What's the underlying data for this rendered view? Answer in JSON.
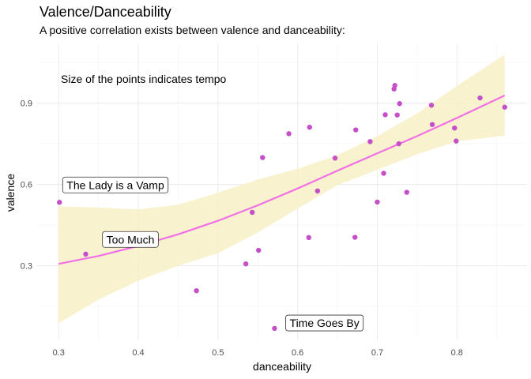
{
  "chart_data": {
    "type": "scatter",
    "title": "Valence/Danceability",
    "subtitle": "A positive correlation exists between valence and danceability:",
    "xlabel": "danceability",
    "ylabel": "valence",
    "xlim": [
      0.272,
      0.888
    ],
    "ylim": [
      0.028,
      1.12
    ],
    "x_ticks": [
      0.3,
      0.4,
      0.5,
      0.6,
      0.7,
      0.8
    ],
    "x_tick_labels": [
      "0.3",
      "0.4",
      "0.5",
      "0.6",
      "0.7",
      "0.8"
    ],
    "y_ticks": [
      0.3,
      0.6,
      0.9
    ],
    "y_tick_labels": [
      "0.3",
      "0.6",
      "0.9"
    ],
    "grid": true,
    "annotation": "Size of the points indicates tempo",
    "point_color": "#c44fc9",
    "trend_color": "#f270e6",
    "band_color": "#f7f0c7",
    "points": [
      {
        "x": 0.301,
        "y": 0.534
      },
      {
        "x": 0.334,
        "y": 0.343
      },
      {
        "x": 0.473,
        "y": 0.208
      },
      {
        "x": 0.535,
        "y": 0.307
      },
      {
        "x": 0.543,
        "y": 0.497
      },
      {
        "x": 0.551,
        "y": 0.357
      },
      {
        "x": 0.556,
        "y": 0.699
      },
      {
        "x": 0.571,
        "y": 0.069
      },
      {
        "x": 0.589,
        "y": 0.787
      },
      {
        "x": 0.614,
        "y": 0.404
      },
      {
        "x": 0.615,
        "y": 0.811
      },
      {
        "x": 0.625,
        "y": 0.576
      },
      {
        "x": 0.647,
        "y": 0.697
      },
      {
        "x": 0.672,
        "y": 0.405
      },
      {
        "x": 0.673,
        "y": 0.801
      },
      {
        "x": 0.691,
        "y": 0.758
      },
      {
        "x": 0.7,
        "y": 0.535
      },
      {
        "x": 0.708,
        "y": 0.641
      },
      {
        "x": 0.71,
        "y": 0.857
      },
      {
        "x": 0.721,
        "y": 0.952
      },
      {
        "x": 0.722,
        "y": 0.965
      },
      {
        "x": 0.725,
        "y": 0.856
      },
      {
        "x": 0.727,
        "y": 0.75
      },
      {
        "x": 0.728,
        "y": 0.898
      },
      {
        "x": 0.737,
        "y": 0.571
      },
      {
        "x": 0.768,
        "y": 0.892
      },
      {
        "x": 0.769,
        "y": 0.821
      },
      {
        "x": 0.797,
        "y": 0.808
      },
      {
        "x": 0.799,
        "y": 0.76
      },
      {
        "x": 0.829,
        "y": 0.919
      },
      {
        "x": 0.86,
        "y": 0.885
      }
    ],
    "smooth": {
      "x": [
        0.3,
        0.35,
        0.4,
        0.45,
        0.5,
        0.55,
        0.6,
        0.65,
        0.7,
        0.75,
        0.8,
        0.86
      ],
      "y": [
        0.307,
        0.336,
        0.373,
        0.416,
        0.466,
        0.523,
        0.585,
        0.651,
        0.715,
        0.778,
        0.845,
        0.928
      ],
      "lower": [
        0.088,
        0.175,
        0.245,
        0.3,
        0.346,
        0.423,
        0.511,
        0.597,
        0.654,
        0.711,
        0.759,
        0.78
      ],
      "upper": [
        0.519,
        0.515,
        0.508,
        0.525,
        0.57,
        0.618,
        0.658,
        0.708,
        0.778,
        0.862,
        0.963,
        1.079
      ]
    },
    "labels": [
      {
        "text": "The Lady is a Vamp",
        "x": 0.301,
        "y": 0.534,
        "anchor_x": 0.305,
        "anchor_y": 0.598
      },
      {
        "text": "Too Much",
        "x": 0.334,
        "y": 0.343,
        "anchor_x": 0.355,
        "anchor_y": 0.397
      },
      {
        "text": "Time Goes By",
        "x": 0.571,
        "y": 0.069,
        "anchor_x": 0.585,
        "anchor_y": 0.089
      }
    ]
  }
}
